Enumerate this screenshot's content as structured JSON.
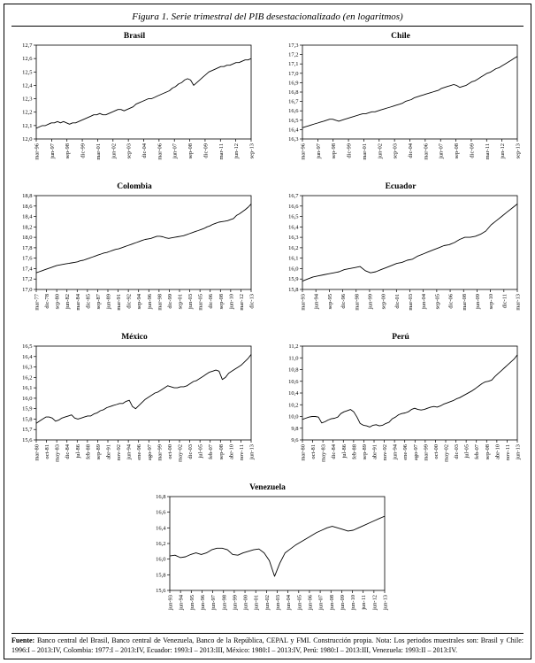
{
  "page": {
    "title": "Figura 1. Serie trimestral del PIB desestacionalizado (en logaritmos)",
    "footnote_label": "Fuente:",
    "footnote_text": "Banco central del Brasil, Banco central de Venezuela, Banco de la República, CEPAL y FMI. Construcción propia. Nota: Los periodos muestrales son: Brasil y Chile: 1996:I – 2013:IV, Colombia: 1977:I – 2013:IV, Ecuador: 1993:I – 2013:III, México: 1980:I – 2013:IV, Perú: 1980:I – 2013:III, Venezuela: 1993:II – 2013:IV."
  },
  "chart_data": [
    {
      "name": "brasil",
      "title": "Brasil",
      "type": "line",
      "grid": false,
      "legend": null,
      "ylim": [
        12.0,
        12.7
      ],
      "ytick_step": 0.1,
      "line_color": "#000000",
      "xticklabels": [
        "mar-96",
        "jun-97",
        "sep-98",
        "dic-99",
        "mar-01",
        "jun-02",
        "sep-03",
        "dic-04",
        "mar-06",
        "jun-07",
        "sep-08",
        "dic-09",
        "mar-11",
        "jun-12",
        "sep-13"
      ],
      "values": [
        12.08,
        12.09,
        12.1,
        12.1,
        12.11,
        12.12,
        12.12,
        12.13,
        12.12,
        12.13,
        12.12,
        12.11,
        12.12,
        12.12,
        12.13,
        12.14,
        12.15,
        12.16,
        12.17,
        12.18,
        12.18,
        12.19,
        12.18,
        12.18,
        12.19,
        12.2,
        12.21,
        12.22,
        12.22,
        12.21,
        12.22,
        12.23,
        12.24,
        12.26,
        12.27,
        12.28,
        12.29,
        12.3,
        12.3,
        12.31,
        12.32,
        12.33,
        12.34,
        12.35,
        12.36,
        12.38,
        12.39,
        12.41,
        12.42,
        12.44,
        12.45,
        12.44,
        12.4,
        12.42,
        12.44,
        12.46,
        12.48,
        12.5,
        12.51,
        12.52,
        12.53,
        12.54,
        12.54,
        12.55,
        12.55,
        12.56,
        12.57,
        12.57,
        12.58,
        12.59,
        12.59,
        12.6
      ]
    },
    {
      "name": "chile",
      "title": "Chile",
      "type": "line",
      "grid": false,
      "legend": null,
      "ylim": [
        16.3,
        17.3
      ],
      "ytick_step": 0.1,
      "line_color": "#000000",
      "xticklabels": [
        "mar-96",
        "jun-97",
        "sep-98",
        "dic-99",
        "mar-01",
        "jun-02",
        "sep-03",
        "dic-04",
        "mar-06",
        "jun-07",
        "sep-08",
        "dic-09",
        "mar-11",
        "jun-12",
        "sep-13"
      ],
      "values": [
        16.42,
        16.43,
        16.44,
        16.45,
        16.46,
        16.47,
        16.48,
        16.49,
        16.5,
        16.51,
        16.51,
        16.5,
        16.49,
        16.5,
        16.51,
        16.52,
        16.53,
        16.54,
        16.55,
        16.56,
        16.57,
        16.57,
        16.58,
        16.59,
        16.59,
        16.6,
        16.61,
        16.62,
        16.63,
        16.64,
        16.65,
        16.66,
        16.67,
        16.68,
        16.7,
        16.71,
        16.72,
        16.74,
        16.75,
        16.76,
        16.77,
        16.78,
        16.79,
        16.8,
        16.81,
        16.82,
        16.84,
        16.85,
        16.86,
        16.87,
        16.88,
        16.87,
        16.85,
        16.86,
        16.87,
        16.89,
        16.91,
        16.92,
        16.94,
        16.96,
        16.98,
        17.0,
        17.01,
        17.03,
        17.05,
        17.06,
        17.08,
        17.1,
        17.12,
        17.14,
        17.16,
        17.18
      ]
    },
    {
      "name": "colombia",
      "title": "Colombia",
      "type": "line",
      "grid": false,
      "legend": null,
      "ylim": [
        17.0,
        18.8
      ],
      "ytick_step": 0.2,
      "line_color": "#000000",
      "xticklabels": [
        "mar-77",
        "dic-78",
        "sep-80",
        "jun-82",
        "mar-84",
        "dic-85",
        "sep-87",
        "jun-89",
        "mar-91",
        "dic-92",
        "sep-94",
        "jun-96",
        "mar-98",
        "dic-99",
        "sep-01",
        "jun-03",
        "mar-05",
        "dic-06",
        "sep-08",
        "jun-10",
        "mar-12",
        "dic-13"
      ],
      "values": [
        17.32,
        17.34,
        17.36,
        17.38,
        17.4,
        17.42,
        17.44,
        17.46,
        17.47,
        17.48,
        17.49,
        17.5,
        17.51,
        17.52,
        17.53,
        17.55,
        17.56,
        17.58,
        17.6,
        17.62,
        17.64,
        17.66,
        17.68,
        17.7,
        17.71,
        17.73,
        17.75,
        17.77,
        17.78,
        17.8,
        17.82,
        17.84,
        17.86,
        17.88,
        17.9,
        17.92,
        17.94,
        17.96,
        17.97,
        17.98,
        18.0,
        18.02,
        18.02,
        18.01,
        17.99,
        17.98,
        17.99,
        18.0,
        18.01,
        18.02,
        18.03,
        18.05,
        18.07,
        18.09,
        18.11,
        18.13,
        18.15,
        18.17,
        18.2,
        18.22,
        18.25,
        18.27,
        18.29,
        18.3,
        18.31,
        18.32,
        18.34,
        18.36,
        18.42,
        18.45,
        18.49,
        18.53,
        18.58,
        18.64
      ]
    },
    {
      "name": "ecuador",
      "title": "Ecuador",
      "type": "line",
      "grid": false,
      "legend": null,
      "ylim": [
        15.8,
        16.7
      ],
      "ytick_step": 0.1,
      "line_color": "#000000",
      "xticklabels": [
        "mar-93",
        "jun-94",
        "sep-95",
        "dic-96",
        "mar-98",
        "jun-99",
        "sep-00",
        "dic-01",
        "mar-03",
        "jun-04",
        "sep-05",
        "dic-06",
        "mar-08",
        "jun-09",
        "sep-10",
        "dic-11",
        "mar-13"
      ],
      "values": [
        15.88,
        15.9,
        15.92,
        15.93,
        15.94,
        15.95,
        15.96,
        15.97,
        15.99,
        16.0,
        16.01,
        16.02,
        15.98,
        15.96,
        15.97,
        15.99,
        16.01,
        16.03,
        16.05,
        16.06,
        16.08,
        16.09,
        16.12,
        16.14,
        16.16,
        16.18,
        16.2,
        16.22,
        16.23,
        16.25,
        16.28,
        16.3,
        16.3,
        16.31,
        16.33,
        16.36,
        16.42,
        16.46,
        16.5,
        16.54,
        16.58,
        16.62
      ]
    },
    {
      "name": "mexico",
      "title": "México",
      "type": "line",
      "grid": false,
      "legend": null,
      "ylim": [
        15.6,
        16.5
      ],
      "ytick_step": 0.1,
      "line_color": "#000000",
      "xticklabels": [
        "mar-80",
        "oct-81",
        "may-83",
        "dic-84",
        "jul-86",
        "feb-88",
        "sep-89",
        "abr-91",
        "nov-92",
        "jun-94",
        "ene-96",
        "ago-97",
        "mar-99",
        "oct-00",
        "may-02",
        "dic-03",
        "jul-05",
        "feb-07",
        "sep-08",
        "abr-10",
        "nov-11",
        "jun-13"
      ],
      "values": [
        15.76,
        15.78,
        15.8,
        15.82,
        15.82,
        15.81,
        15.78,
        15.79,
        15.81,
        15.82,
        15.83,
        15.84,
        15.81,
        15.8,
        15.81,
        15.82,
        15.83,
        15.83,
        15.85,
        15.86,
        15.88,
        15.89,
        15.91,
        15.92,
        15.93,
        15.94,
        15.95,
        15.95,
        15.97,
        15.98,
        15.92,
        15.9,
        15.93,
        15.96,
        15.99,
        16.01,
        16.03,
        16.05,
        16.06,
        16.08,
        16.1,
        16.12,
        16.11,
        16.1,
        16.1,
        16.11,
        16.11,
        16.12,
        16.14,
        16.16,
        16.17,
        16.19,
        16.21,
        16.23,
        16.25,
        16.26,
        16.27,
        16.26,
        16.18,
        16.2,
        16.24,
        16.26,
        16.28,
        16.3,
        16.32,
        16.35,
        16.38,
        16.42
      ]
    },
    {
      "name": "peru",
      "title": "Perú",
      "type": "line",
      "grid": false,
      "legend": null,
      "ylim": [
        9.6,
        11.2
      ],
      "ytick_step": 0.2,
      "line_color": "#000000",
      "xticklabels": [
        "mar-80",
        "oct-81",
        "may-83",
        "dic-84",
        "jul-86",
        "feb-88",
        "sep-89",
        "abr-91",
        "nov-92",
        "jun-94",
        "ene-96",
        "ago-97",
        "mar-99",
        "oct-00",
        "may-02",
        "dic-03",
        "jul-05",
        "feb-07",
        "sep-08",
        "abr-10",
        "nov-11",
        "jun-13"
      ],
      "values": [
        9.95,
        9.97,
        9.99,
        10.0,
        10.0,
        9.99,
        9.89,
        9.91,
        9.94,
        9.96,
        9.97,
        9.99,
        10.05,
        10.08,
        10.1,
        10.12,
        10.08,
        9.99,
        9.88,
        9.85,
        9.84,
        9.82,
        9.85,
        9.86,
        9.84,
        9.85,
        9.88,
        9.9,
        9.96,
        9.99,
        10.03,
        10.05,
        10.06,
        10.08,
        10.12,
        10.14,
        10.12,
        10.11,
        10.12,
        10.14,
        10.16,
        10.17,
        10.16,
        10.18,
        10.21,
        10.23,
        10.25,
        10.27,
        10.3,
        10.32,
        10.35,
        10.38,
        10.41,
        10.44,
        10.48,
        10.52,
        10.56,
        10.59,
        10.6,
        10.62,
        10.68,
        10.73,
        10.78,
        10.83,
        10.88,
        10.93,
        10.98,
        11.05
      ]
    },
    {
      "name": "venezuela",
      "title": "Venezuela",
      "type": "line",
      "grid": false,
      "legend": null,
      "ylim": [
        15.6,
        16.8
      ],
      "ytick_step": 0.2,
      "line_color": "#000000",
      "xticklabels": [
        "jun-93",
        "jun-94",
        "jun-95",
        "jun-96",
        "jun-97",
        "jun-98",
        "jun-99",
        "jun-00",
        "jun-01",
        "jun-02",
        "jun-03",
        "jun-04",
        "jun-05",
        "jun-06",
        "jun-07",
        "jun-08",
        "jun-09",
        "jun-10",
        "jun-11",
        "jun-12",
        "jun-13"
      ],
      "values": [
        16.04,
        16.05,
        16.02,
        16.03,
        16.06,
        16.08,
        16.06,
        16.08,
        16.12,
        16.14,
        16.14,
        16.12,
        16.06,
        16.05,
        16.08,
        16.1,
        16.12,
        16.13,
        16.08,
        15.98,
        15.78,
        15.95,
        16.08,
        16.13,
        16.18,
        16.22,
        16.26,
        16.3,
        16.34,
        16.37,
        16.4,
        16.42,
        16.4,
        16.38,
        16.36,
        16.37,
        16.4,
        16.43,
        16.46,
        16.49,
        16.52,
        16.55
      ]
    }
  ]
}
